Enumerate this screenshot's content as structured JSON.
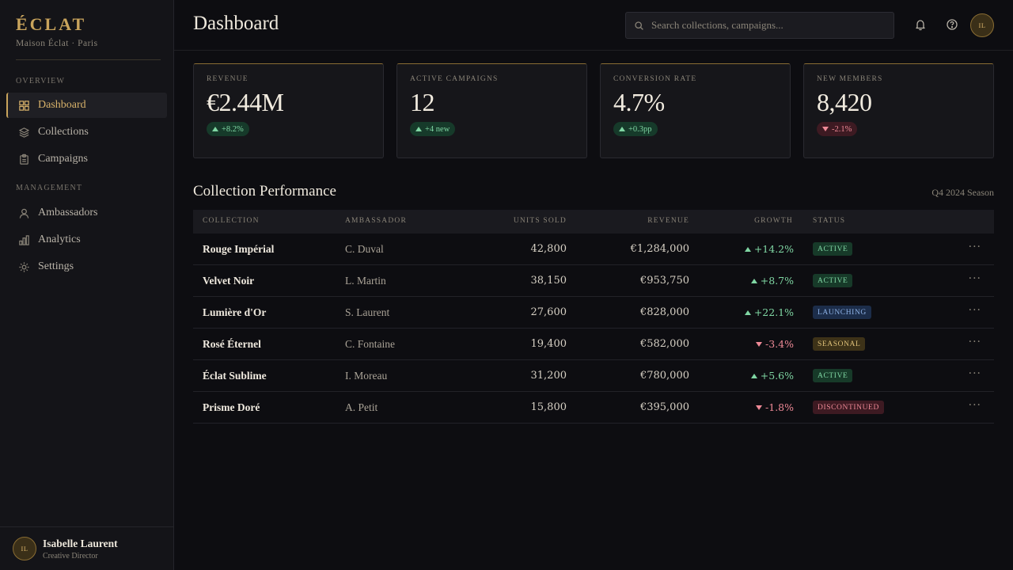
{
  "brand": {
    "name": "ÉCLAT",
    "subtitle": "Maison Éclat · Paris"
  },
  "sidebar": {
    "sections": [
      {
        "label": "OVERVIEW"
      },
      {
        "label": "MANAGEMENT"
      }
    ],
    "items": [
      {
        "label": "Dashboard",
        "icon": "grid-icon",
        "active": true
      },
      {
        "label": "Collections",
        "icon": "layers-icon"
      },
      {
        "label": "Campaigns",
        "icon": "clipboard-icon"
      },
      {
        "label": "Ambassadors",
        "icon": "user-icon"
      },
      {
        "label": "Analytics",
        "icon": "bar-chart-icon"
      },
      {
        "label": "Settings",
        "icon": "gear-icon"
      }
    ]
  },
  "user": {
    "initials": "IL",
    "name": "Isabelle Laurent",
    "role": "Creative Director"
  },
  "header": {
    "title": "Dashboard",
    "search_placeholder": "Search collections, campaigns...",
    "avatar_initials": "IL"
  },
  "kpis": [
    {
      "label": "REVENUE",
      "value": "€2.44M",
      "delta": "+8.2%",
      "trend": "up"
    },
    {
      "label": "ACTIVE CAMPAIGNS",
      "value": "12",
      "delta": "+4 new",
      "trend": "up"
    },
    {
      "label": "CONVERSION RATE",
      "value": "4.7%",
      "delta": "+0.3pp",
      "trend": "up"
    },
    {
      "label": "NEW MEMBERS",
      "value": "8,420",
      "delta": "-2.1%",
      "trend": "down"
    }
  ],
  "performance": {
    "title": "Collection Performance",
    "season": "Q4 2024 Season",
    "columns": [
      "COLLECTION",
      "AMBASSADOR",
      "UNITS SOLD",
      "REVENUE",
      "GROWTH",
      "STATUS"
    ],
    "rows": [
      {
        "collection": "Rouge Impérial",
        "ambassador": "C. Duval",
        "units": "42,800",
        "revenue": "€1,284,000",
        "growth": "+14.2%",
        "trend": "up",
        "status": "ACTIVE"
      },
      {
        "collection": "Velvet Noir",
        "ambassador": "L. Martin",
        "units": "38,150",
        "revenue": "€953,750",
        "growth": "+8.7%",
        "trend": "up",
        "status": "ACTIVE"
      },
      {
        "collection": "Lumière d'Or",
        "ambassador": "S. Laurent",
        "units": "27,600",
        "revenue": "€828,000",
        "growth": "+22.1%",
        "trend": "up",
        "status": "LAUNCHING"
      },
      {
        "collection": "Rosé Éternel",
        "ambassador": "C. Fontaine",
        "units": "19,400",
        "revenue": "€582,000",
        "growth": "-3.4%",
        "trend": "down",
        "status": "SEASONAL"
      },
      {
        "collection": "Éclat Sublime",
        "ambassador": "I. Moreau",
        "units": "31,200",
        "revenue": "€780,000",
        "growth": "+5.6%",
        "trend": "up",
        "status": "ACTIVE"
      },
      {
        "collection": "Prisme Doré",
        "ambassador": "A. Petit",
        "units": "15,800",
        "revenue": "€395,000",
        "growth": "-1.8%",
        "trend": "down",
        "status": "DISCONTINUED"
      }
    ]
  },
  "status_colors": {
    "ACTIVE": {
      "bg": "#173a29",
      "fg": "#7fd6a3"
    },
    "LAUNCHING": {
      "bg": "#1c2d4a",
      "fg": "#8fb4e8"
    },
    "SEASONAL": {
      "bg": "#3d3218",
      "fg": "#e0c27a"
    },
    "DISCONTINUED": {
      "bg": "#3d1a22",
      "fg": "#ef8a97"
    }
  },
  "colors": {
    "accent": "#c9a45c",
    "background": "#0d0d11",
    "positive": "#7fd6a3",
    "negative": "#ef8a97"
  }
}
